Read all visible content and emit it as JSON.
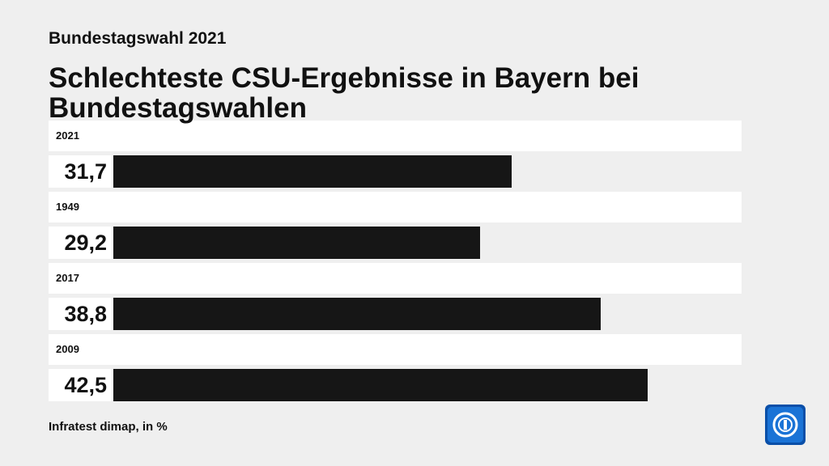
{
  "chart_data": {
    "type": "bar",
    "orientation": "horizontal",
    "subtitle": "Bundestagswahl 2021",
    "title": "Schlechteste CSU-Ergebnisse in Bayern bei Bundestagswahlen",
    "categories": [
      "2021",
      "1949",
      "2017",
      "2009"
    ],
    "values": [
      31.7,
      29.2,
      38.8,
      42.5
    ],
    "value_labels": [
      "31,7",
      "29,2",
      "38,8",
      "42,5"
    ],
    "color": "#161616",
    "xlim": [
      0,
      50
    ],
    "source": "Infratest dimap, in %"
  }
}
